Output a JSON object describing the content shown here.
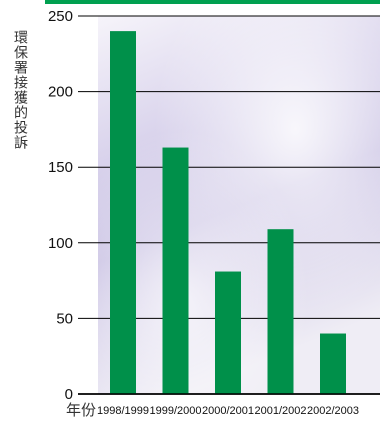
{
  "colors": {
    "bar": "#00904A",
    "accent_bar": "#00A050",
    "axis": "#000000",
    "bg_top": "#f0eef6",
    "bg_mid": "#c9c2e3",
    "bg_bottom": "#ece9f3"
  },
  "chart_data": {
    "type": "bar",
    "title": "",
    "ylabel": "環保署接獲的投訴",
    "xlabel": "年份",
    "categories": [
      "1998/1999",
      "1999/2000",
      "2000/2001",
      "2001/2002",
      "2002/2003"
    ],
    "values": [
      240,
      163,
      81,
      109,
      40
    ],
    "ylim": [
      0,
      250
    ],
    "yticks": [
      0,
      50,
      100,
      150,
      200,
      250
    ],
    "grid": true
  }
}
